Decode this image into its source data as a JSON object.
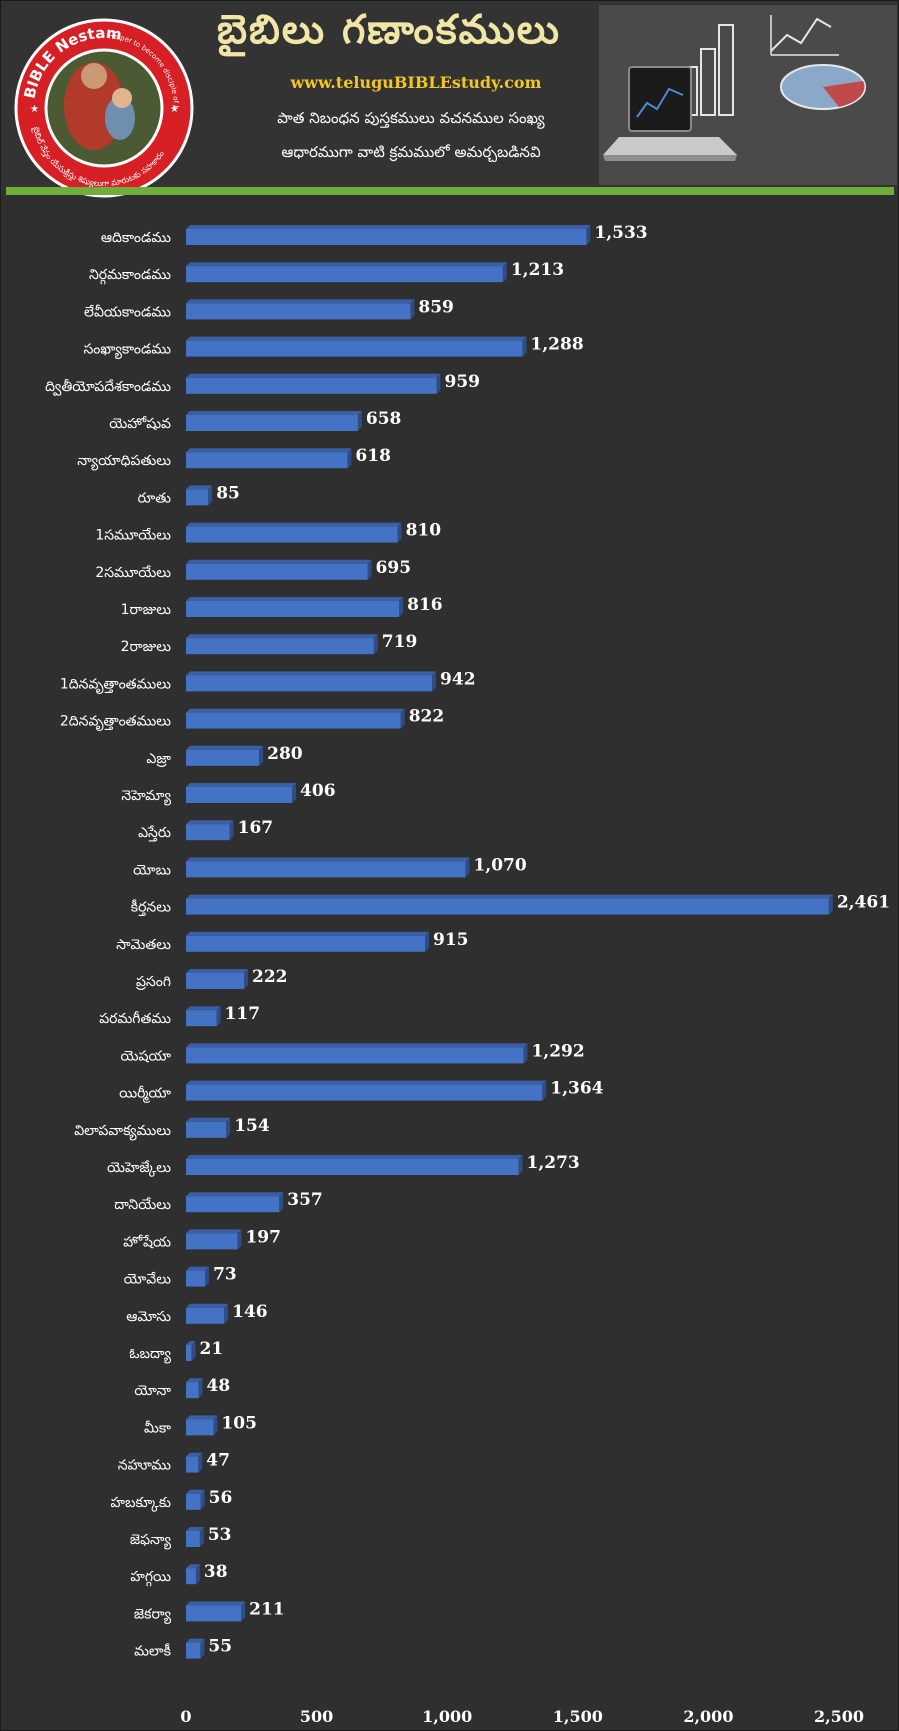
{
  "header": {
    "title": "బైబిలు గణాంకములు",
    "website": "www.teluguBIBLEstudy.com",
    "subtitle_line1": "పాత నిబంధన పుస్తకములు వచనముల సంఖ్య",
    "subtitle_line2": "ఆధారముగా వాటి క్రమములో అమర్చబడినవి",
    "logo_brand": "BIBLE Nestam",
    "logo_tagline": "Helper to become disciple of Jesus Christ",
    "logo_telugu": "బైబిల్ నేస్తం యేసుక్రీస్తు శిష్యులుగా మారుటకు సహకారం"
  },
  "colors": {
    "background": "#2f2f2f",
    "bar": "#4472c4",
    "accent_green": "#6fae3a",
    "title": "#f2e6a6",
    "website": "#f3c622",
    "logo_red": "#d71f26"
  },
  "chart_data": {
    "type": "bar",
    "orientation": "horizontal",
    "categories": [
      "ఆదికాండము",
      "నిర్గమకాండము",
      "లేవీయకాండము",
      "సంఖ్యాకాండము",
      "ద్వితీయోపదేశకాండము",
      "యెహోషువ",
      "న్యాయాధిపతులు",
      "రూతు",
      "1సమూయేలు",
      "2సమూయేలు",
      "1రాజులు",
      "2రాజులు",
      "1దినవృత్తాంతములు",
      "2దినవృత్తాంతములు",
      "ఎజ్రా",
      "నెహెమ్యా",
      "ఎస్తేరు",
      "యోబు",
      "కీర్తనలు",
      "సామెతలు",
      "ప్రసంగి",
      "పరమగీతము",
      "యెషయా",
      "యిర్మీయా",
      "విలాపవాక్యములు",
      "యెహెజ్కేలు",
      "దానియేలు",
      "హోషేయ",
      "యోవేలు",
      "ఆమోసు",
      "ఓబద్యా",
      "యోనా",
      "మీకా",
      "నహూము",
      "హబక్కూకు",
      "జెఫన్యా",
      "హగ్గయి",
      "జెకర్యా",
      "మలాకీ"
    ],
    "values": [
      1533,
      1213,
      859,
      1288,
      959,
      658,
      618,
      85,
      810,
      695,
      816,
      719,
      942,
      822,
      280,
      406,
      167,
      1070,
      2461,
      915,
      222,
      117,
      1292,
      1364,
      154,
      1273,
      357,
      197,
      73,
      146,
      21,
      48,
      105,
      47,
      56,
      53,
      38,
      211,
      55
    ],
    "value_labels": [
      "1,533",
      "1,213",
      "859",
      "1,288",
      "959",
      "658",
      "618",
      "85",
      "810",
      "695",
      "816",
      "719",
      "942",
      "822",
      "280",
      "406",
      "167",
      "1,070",
      "2,461",
      "915",
      "222",
      "117",
      "1,292",
      "1,364",
      "154",
      "1,273",
      "357",
      "197",
      "73",
      "146",
      "21",
      "48",
      "105",
      "47",
      "56",
      "53",
      "38",
      "211",
      "55"
    ],
    "xlim": [
      0,
      2500
    ],
    "x_ticks": [
      0,
      500,
      1000,
      1500,
      2000,
      2500
    ],
    "x_tick_labels": [
      "0",
      "500",
      "1,000",
      "1,500",
      "2,000",
      "2,500"
    ],
    "grid": false,
    "legend": "none"
  }
}
